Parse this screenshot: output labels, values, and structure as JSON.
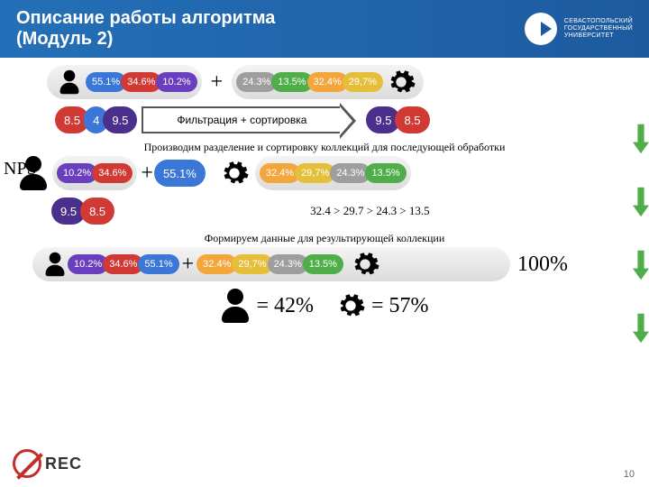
{
  "header": {
    "title_line1": "Описание работы алгоритма",
    "title_line2": "(Модуль 2)",
    "university_line1": "СЕВАСТОПОЛЬСКИЙ",
    "university_line2": "ГОСУДАРСТВЕННЫЙ",
    "university_line3": "УНИВЕРСИТЕТ"
  },
  "colors": {
    "blue": "#3a77d6",
    "red": "#d13a34",
    "purple": "#6a3fbf",
    "gray": "#9e9e9e",
    "green": "#4fae4a",
    "orange": "#f2a63c",
    "gold": "#e6bf3a",
    "darkpurple": "#4a2f8c",
    "arrow_green": "#4fae4a"
  },
  "row1": {
    "person_pills": [
      {
        "label": "55.1%",
        "color": "blue"
      },
      {
        "label": "34.6%",
        "color": "red"
      },
      {
        "label": "10.2%",
        "color": "purple"
      }
    ],
    "gear_pills": [
      {
        "label": "24.3%",
        "color": "gray"
      },
      {
        "label": "13.5%",
        "color": "green"
      },
      {
        "label": "32.4%",
        "color": "orange"
      },
      {
        "label": "29,7%",
        "color": "gold"
      }
    ],
    "plus": "+"
  },
  "nps": {
    "label": "NPS",
    "left_pills": [
      {
        "label": "8.5",
        "color": "red"
      },
      {
        "label": "4",
        "color": "blue"
      },
      {
        "label": "9.5",
        "color": "darkpurple"
      }
    ],
    "arrow_text": "Фильтрация + сортировка",
    "right_pills": [
      {
        "label": "9.5",
        "color": "darkpurple"
      },
      {
        "label": "8.5",
        "color": "red"
      }
    ]
  },
  "caption1": "Производим разделение и сортировку коллекций для последующей обработки",
  "row3": {
    "person_pills": [
      {
        "label": "10.2%",
        "color": "purple"
      },
      {
        "label": "34.6%",
        "color": "red"
      }
    ],
    "extra_pill": {
      "label": "55.1%",
      "color": "blue"
    },
    "plus": "+",
    "gear_pills": [
      {
        "label": "32.4%",
        "color": "orange"
      },
      {
        "label": "29,7%",
        "color": "gold"
      },
      {
        "label": "24.3%",
        "color": "gray"
      },
      {
        "label": "13.5%",
        "color": "green"
      }
    ],
    "inequality": "32.4 > 29.7 > 24.3 > 13.5",
    "under_pills": [
      {
        "label": "9.5",
        "color": "darkpurple"
      },
      {
        "label": "8.5",
        "color": "red"
      }
    ]
  },
  "caption2": "Формируем данные для результирующей коллекции",
  "row4": {
    "person_pills": [
      {
        "label": "10.2%",
        "color": "purple"
      },
      {
        "label": "34.6%",
        "color": "red"
      },
      {
        "label": "55.1%",
        "color": "blue"
      }
    ],
    "plus": "+",
    "gear_pills": [
      {
        "label": "32.4%",
        "color": "orange"
      },
      {
        "label": "29,7%",
        "color": "gold"
      },
      {
        "label": "24.3%",
        "color": "gray"
      },
      {
        "label": "13.5%",
        "color": "green"
      }
    ],
    "total": "100%"
  },
  "results": {
    "person_value": "= 42%",
    "gear_value": "= 57%"
  },
  "footer": {
    "rec_text": "REC",
    "page": "10"
  }
}
